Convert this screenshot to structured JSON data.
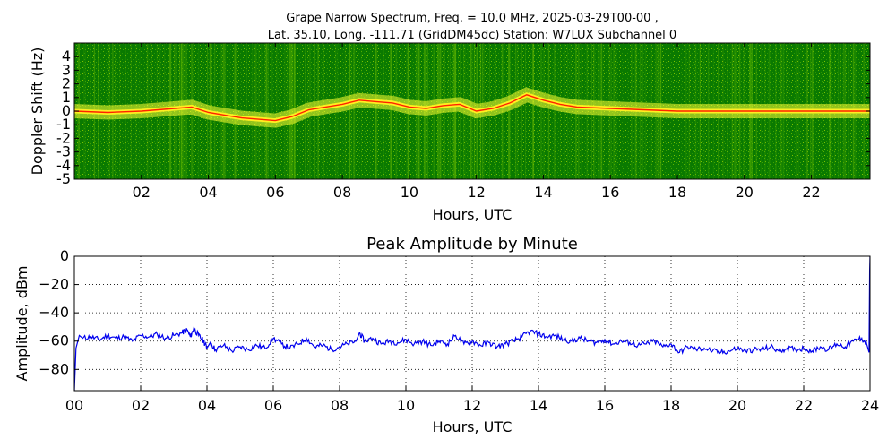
{
  "chart_data": [
    {
      "type": "heatmap",
      "title_line1": "Grape Narrow Spectrum, Freq. = 10.0 MHz, 2025-03-29T00-00 ,",
      "title_line2": "Lat.  35.10, Long. -111.71 (GridDM45dc) Station: W7LUX Subchannel 0",
      "xlabel": "Hours, UTC",
      "ylabel": "Doppler Shift (Hz)",
      "xlim": [
        0,
        23.75
      ],
      "ylim": [
        -5,
        5
      ],
      "x_ticks": [
        {
          "value": 2,
          "label": "02"
        },
        {
          "value": 4,
          "label": "04"
        },
        {
          "value": 6,
          "label": "06"
        },
        {
          "value": 8,
          "label": "08"
        },
        {
          "value": 10,
          "label": "10"
        },
        {
          "value": 12,
          "label": "12"
        },
        {
          "value": 14,
          "label": "14"
        },
        {
          "value": 16,
          "label": "16"
        },
        {
          "value": 18,
          "label": "18"
        },
        {
          "value": 20,
          "label": "20"
        },
        {
          "value": 22,
          "label": "22"
        }
      ],
      "y_ticks": [
        {
          "value": 4,
          "label": "4"
        },
        {
          "value": 3,
          "label": "3"
        },
        {
          "value": 2,
          "label": "2"
        },
        {
          "value": 1,
          "label": "1"
        },
        {
          "value": 0,
          "label": "0"
        },
        {
          "value": -1,
          "label": "-1"
        },
        {
          "value": -2,
          "label": "-2"
        },
        {
          "value": -3,
          "label": "-3"
        },
        {
          "value": -4,
          "label": "-4"
        },
        {
          "value": -5,
          "label": "-5"
        }
      ],
      "colors": {
        "background": "#0a7a00",
        "signal": "#ffff33",
        "peak": "#ff2200"
      },
      "carrier_trace": {
        "hours": [
          0,
          1,
          2,
          3,
          3.5,
          4,
          4.5,
          5,
          5.5,
          6,
          6.5,
          7,
          7.5,
          8,
          8.5,
          9,
          9.5,
          10,
          10.5,
          11,
          11.5,
          12,
          12.5,
          13,
          13.5,
          14,
          14.5,
          15,
          16,
          17,
          18,
          19,
          20,
          21,
          22,
          23,
          23.75
        ],
        "doppler": [
          0.0,
          -0.1,
          0.0,
          0.2,
          0.3,
          -0.1,
          -0.3,
          -0.5,
          -0.6,
          -0.7,
          -0.4,
          0.1,
          0.3,
          0.5,
          0.8,
          0.7,
          0.6,
          0.3,
          0.2,
          0.4,
          0.5,
          0.0,
          0.2,
          0.6,
          1.2,
          0.8,
          0.5,
          0.3,
          0.2,
          0.1,
          0.0,
          0.0,
          0.0,
          0.0,
          0.0,
          0.0,
          0.0
        ]
      }
    },
    {
      "type": "line",
      "title": "Peak Amplitude by Minute",
      "xlabel": "Hours, UTC",
      "ylabel": "Amplitude, dBm",
      "xlim": [
        0,
        24
      ],
      "ylim": [
        -95,
        0
      ],
      "grid": true,
      "x_ticks": [
        {
          "value": 0,
          "label": "00"
        },
        {
          "value": 2,
          "label": "02"
        },
        {
          "value": 4,
          "label": "04"
        },
        {
          "value": 6,
          "label": "06"
        },
        {
          "value": 8,
          "label": "08"
        },
        {
          "value": 10,
          "label": "10"
        },
        {
          "value": 12,
          "label": "12"
        },
        {
          "value": 14,
          "label": "14"
        },
        {
          "value": 16,
          "label": "16"
        },
        {
          "value": 18,
          "label": "18"
        },
        {
          "value": 20,
          "label": "20"
        },
        {
          "value": 22,
          "label": "22"
        },
        {
          "value": 24,
          "label": "24"
        }
      ],
      "y_ticks": [
        {
          "value": 0,
          "label": "0"
        },
        {
          "value": -20,
          "label": "−20"
        },
        {
          "value": -40,
          "label": "−40"
        },
        {
          "value": -60,
          "label": "−60"
        },
        {
          "value": -80,
          "label": "−80"
        }
      ],
      "line_color": "#0000ee",
      "series": [
        {
          "x": [
            0,
            0.05,
            0.15,
            0.25,
            0.5,
            0.75,
            1.0,
            1.25,
            1.5,
            1.75,
            2.0,
            2.25,
            2.5,
            2.75,
            3.0,
            3.25,
            3.4,
            3.5,
            3.6,
            3.75,
            3.9,
            4.0,
            4.1,
            4.25,
            4.5,
            4.75,
            5.0,
            5.25,
            5.5,
            5.75,
            6.0,
            6.25,
            6.5,
            6.75,
            7.0,
            7.25,
            7.5,
            7.75,
            8.0,
            8.25,
            8.5,
            8.6,
            8.75,
            9.0,
            9.25,
            9.5,
            9.75,
            10.0,
            10.25,
            10.5,
            10.75,
            11.0,
            11.25,
            11.5,
            11.75,
            12.0,
            12.25,
            12.5,
            12.75,
            13.0,
            13.25,
            13.5,
            13.75,
            14.0,
            14.25,
            14.5,
            14.75,
            15.0,
            15.25,
            15.5,
            15.75,
            16.0,
            16.25,
            16.5,
            16.75,
            17.0,
            17.25,
            17.5,
            17.75,
            18.0,
            18.25,
            18.5,
            18.75,
            19.0,
            19.25,
            19.5,
            19.75,
            20.0,
            20.25,
            20.5,
            20.75,
            21.0,
            21.25,
            21.5,
            21.75,
            22.0,
            22.25,
            22.5,
            22.75,
            23.0,
            23.25,
            23.5,
            23.75,
            23.9,
            23.97,
            23.99,
            24.0
          ],
          "y": [
            -95,
            -65,
            -56,
            -58,
            -57,
            -59,
            -56,
            -58,
            -57,
            -60,
            -56,
            -57,
            -55,
            -58,
            -56,
            -54,
            -52,
            -57,
            -51,
            -56,
            -60,
            -65,
            -61,
            -66,
            -63,
            -67,
            -64,
            -66,
            -63,
            -65,
            -58,
            -62,
            -65,
            -62,
            -58,
            -64,
            -63,
            -66,
            -64,
            -62,
            -60,
            -54,
            -60,
            -58,
            -62,
            -60,
            -61,
            -59,
            -62,
            -60,
            -63,
            -60,
            -62,
            -56,
            -62,
            -60,
            -63,
            -61,
            -64,
            -62,
            -60,
            -57,
            -53,
            -55,
            -57,
            -56,
            -59,
            -60,
            -58,
            -60,
            -61,
            -59,
            -62,
            -60,
            -61,
            -63,
            -62,
            -60,
            -64,
            -62,
            -68,
            -64,
            -66,
            -65,
            -67,
            -68,
            -67,
            -65,
            -67,
            -66,
            -66,
            -64,
            -67,
            -65,
            -66,
            -65,
            -67,
            -64,
            -66,
            -62,
            -64,
            -60,
            -58,
            -62,
            -68,
            -10,
            0
          ]
        }
      ]
    }
  ]
}
